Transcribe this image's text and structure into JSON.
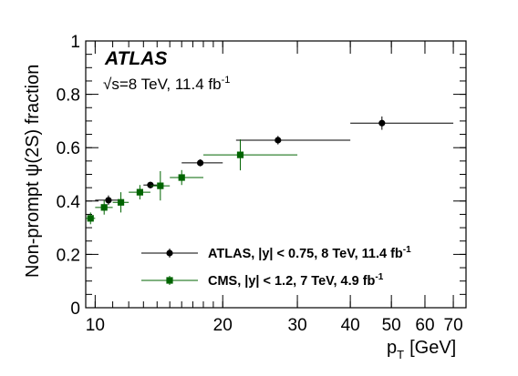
{
  "chart_data": {
    "type": "scatter",
    "title": "",
    "xlabel": "p_T [GeV]",
    "ylabel": "Non-prompt ψ(2S) fraction",
    "xlabel_main": "p",
    "xlabel_sub": "T",
    "xlabel_unit": "[GeV]",
    "x_scale": "log",
    "xlim": [
      9.5,
      75
    ],
    "ylim": [
      0,
      1
    ],
    "xticks": [
      {
        "value": 10,
        "label": "10"
      },
      {
        "value": 20,
        "label": "20"
      },
      {
        "value": 30,
        "label": "30"
      },
      {
        "value": 40,
        "label": "40"
      },
      {
        "value": 50,
        "label": "50"
      },
      {
        "value": 60,
        "label": "60"
      },
      {
        "value": 70,
        "label": "70"
      }
    ],
    "yticks": [
      {
        "value": 0,
        "label": "0"
      },
      {
        "value": 0.2,
        "label": "0.2"
      },
      {
        "value": 0.4,
        "label": "0.4"
      },
      {
        "value": 0.6,
        "label": "0.6"
      },
      {
        "value": 0.8,
        "label": "0.8"
      },
      {
        "value": 1,
        "label": "1"
      }
    ],
    "experiment_label": "ATLAS",
    "energy_sqrt": "√",
    "energy_text": "s=8 TeV, 11.4 fb",
    "energy_sup": "-1",
    "legend_position": "bottom-right",
    "series": [
      {
        "name": "ATLAS, |y| < 0.75, 8 TeV, 11.4 fb",
        "name_sup": "-1",
        "color": "#000000",
        "marker": "circle",
        "points": [
          {
            "x": 10.75,
            "y": 0.403,
            "xlo": 10.0,
            "xhi": 11.5,
            "yerr": 0.018
          },
          {
            "x": 13.5,
            "y": 0.46,
            "xlo": 13.0,
            "xhi": 14.0,
            "yerr": 0.012
          },
          {
            "x": 17.7,
            "y": 0.543,
            "xlo": 16.0,
            "xhi": 20.0,
            "yerr": 0.013
          },
          {
            "x": 27.0,
            "y": 0.628,
            "xlo": 21.5,
            "xhi": 40.0,
            "yerr": 0.016
          },
          {
            "x": 47.5,
            "y": 0.692,
            "xlo": 40.0,
            "xhi": 70.0,
            "yerr": 0.025
          }
        ]
      },
      {
        "name": "CMS, |y| < 1.2, 7 TeV, 4.9 fb",
        "name_sup": "-1",
        "color": "#006400",
        "marker": "square",
        "points": [
          {
            "x": 9.75,
            "y": 0.335,
            "xlo": 9.5,
            "xhi": 10.0,
            "yerr": 0.022
          },
          {
            "x": 10.5,
            "y": 0.376,
            "xlo": 10.0,
            "xhi": 11.0,
            "yerr": 0.027
          },
          {
            "x": 11.5,
            "y": 0.395,
            "xlo": 11.0,
            "xhi": 12.0,
            "yerr": 0.038
          },
          {
            "x": 12.75,
            "y": 0.433,
            "xlo": 12.0,
            "xhi": 13.5,
            "yerr": 0.027
          },
          {
            "x": 14.25,
            "y": 0.457,
            "xlo": 13.5,
            "xhi": 15.0,
            "yerr": 0.055
          },
          {
            "x": 16.0,
            "y": 0.488,
            "xlo": 15.0,
            "xhi": 18.0,
            "yerr": 0.028
          },
          {
            "x": 22.0,
            "y": 0.573,
            "xlo": 18.0,
            "xhi": 30.0,
            "yerr": 0.058
          }
        ]
      }
    ]
  }
}
